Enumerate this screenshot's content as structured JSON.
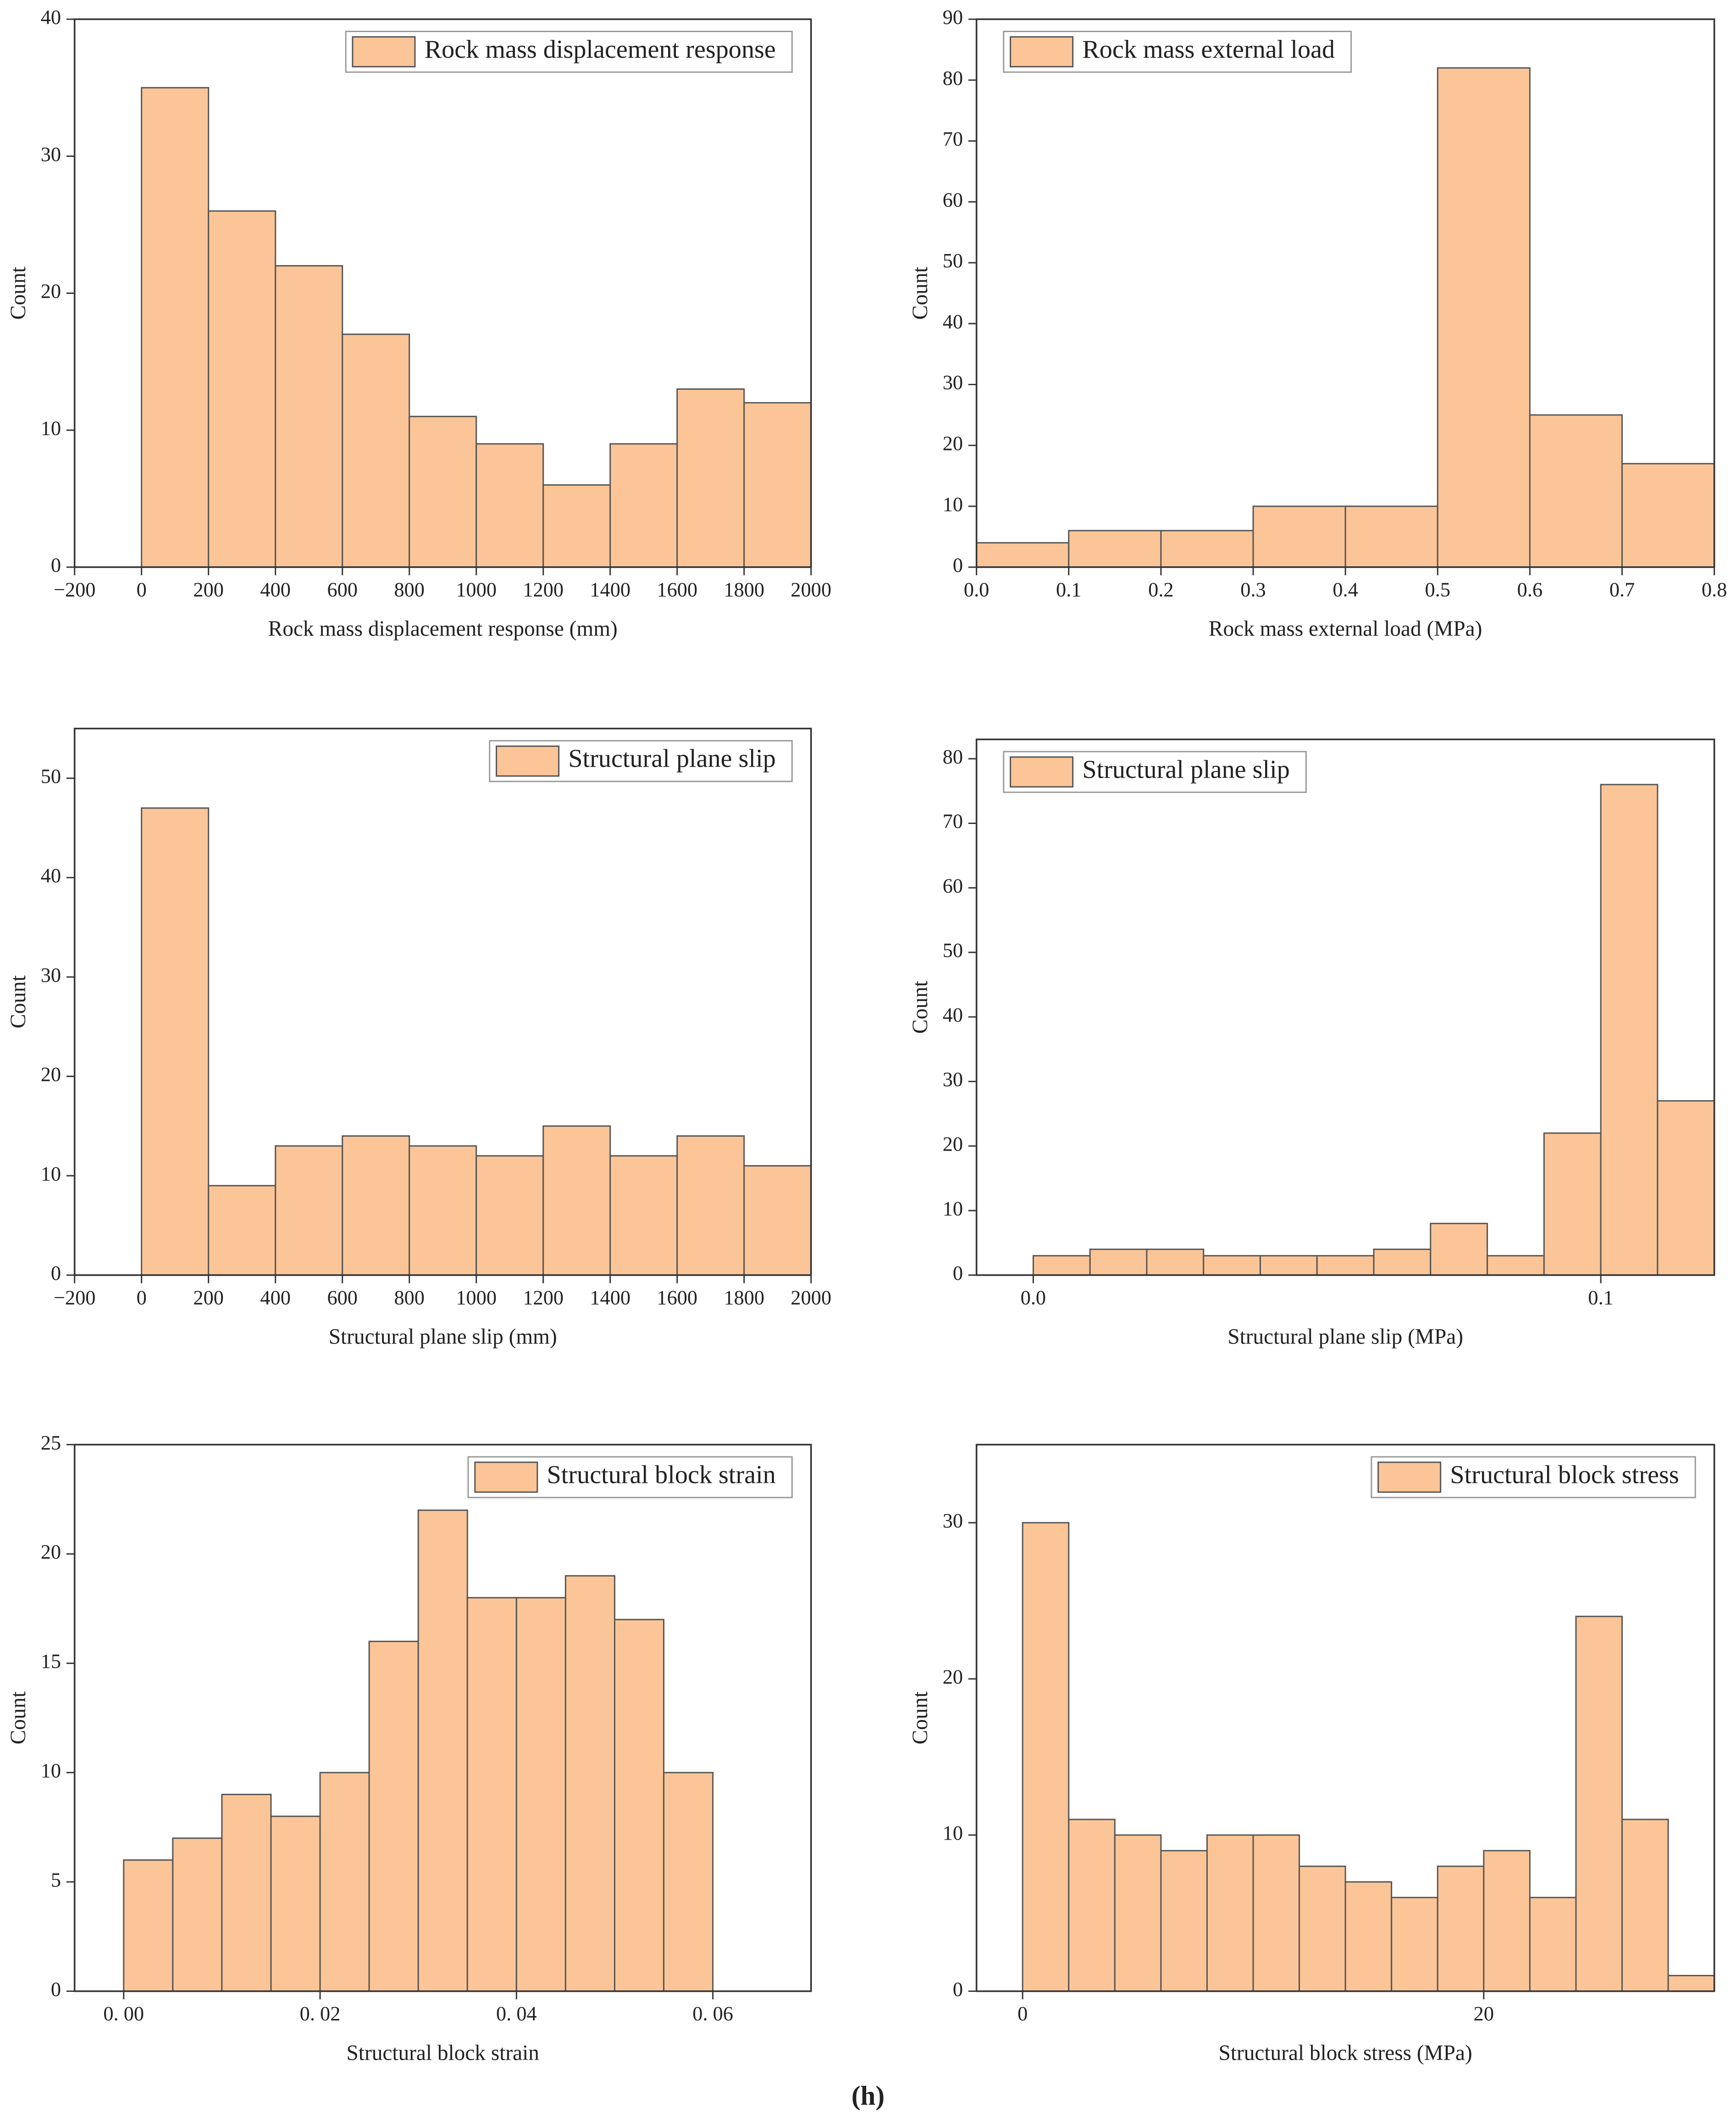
{
  "chart_data": [
    {
      "type": "histogram",
      "bins": [
        0,
        200,
        400,
        600,
        800,
        1000,
        1200,
        1400,
        1600,
        1800,
        2000
      ],
      "series": [
        {
          "name": "Rock mass displacement response",
          "color": "#fbc597",
          "values": [
            35,
            26,
            22,
            17,
            11,
            9,
            6,
            9,
            13,
            12
          ]
        }
      ],
      "xlim": [
        -200,
        2000
      ],
      "xticks": [
        {
          "value": -200,
          "label": "−200"
        },
        0,
        200,
        400,
        600,
        800,
        1000,
        1200,
        1400,
        1600,
        1800,
        2000
      ],
      "ylim": [
        0,
        40
      ],
      "yticks": [
        0,
        10,
        20,
        30,
        40
      ],
      "x_label": "Rock mass displacement response (mm)",
      "y_label": "Count",
      "legend": "upper right"
    },
    {
      "type": "histogram",
      "bins": [
        0,
        0.1,
        0.2,
        0.3,
        0.4,
        0.5,
        0.6,
        0.7,
        0.8
      ],
      "series": [
        {
          "name": "Rock mass external load",
          "color": "#fbc597",
          "values": [
            4,
            6,
            6,
            10,
            10,
            82,
            25,
            17
          ]
        }
      ],
      "xlim": [
        0,
        0.8
      ],
      "xticks": [
        {
          "value": 0,
          "label": "0.0"
        },
        0.1,
        0.2,
        0.3,
        0.4,
        0.5,
        0.6,
        0.7,
        0.8
      ],
      "ylim": [
        0,
        90
      ],
      "yticks": [
        0,
        10,
        20,
        30,
        40,
        50,
        60,
        70,
        80,
        90
      ],
      "x_label": "Rock mass external load (MPa)",
      "y_label": "Count",
      "legend": "upper left"
    },
    {
      "type": "histogram",
      "bins": [
        0,
        200,
        400,
        600,
        800,
        1000,
        1200,
        1400,
        1600,
        1800,
        2000
      ],
      "series": [
        {
          "name": "Structural plane slip",
          "color": "#fbc597",
          "values": [
            47,
            9,
            13,
            14,
            13,
            12,
            15,
            12,
            14,
            11
          ]
        }
      ],
      "xlim": [
        -200,
        2000
      ],
      "xticks": [
        {
          "value": -200,
          "label": "−200"
        },
        0,
        200,
        400,
        600,
        800,
        1000,
        1200,
        1400,
        1600,
        1800,
        2000
      ],
      "ylim": [
        0,
        55
      ],
      "yticks": [
        0,
        10,
        20,
        30,
        40,
        50
      ],
      "x_label": "Structural plane slip (mm)",
      "y_label": "Count",
      "legend": "upper right"
    },
    {
      "type": "histogram",
      "bins": [
        0,
        0.01,
        0.02,
        0.03,
        0.04,
        0.05,
        0.06,
        0.07,
        0.08,
        0.09,
        0.1,
        0.11,
        0.12
      ],
      "series": [
        {
          "name": "Structural plane slip",
          "color": "#fbc597",
          "values": [
            3,
            4,
            4,
            3,
            3,
            3,
            4,
            8,
            3,
            22,
            76,
            27
          ]
        }
      ],
      "xlim": [
        -0.01,
        0.12
      ],
      "xticks": [
        {
          "value": 0,
          "label": "0.0"
        },
        0.1
      ],
      "ylim": [
        0,
        83
      ],
      "yticks": [
        0,
        10,
        20,
        30,
        40,
        50,
        60,
        70,
        80
      ],
      "x_label": "Structural plane slip (MPa)",
      "y_label": "Count",
      "legend": "upper left"
    },
    {
      "type": "histogram",
      "bins": [
        0,
        0.005,
        0.01,
        0.015,
        0.02,
        0.025,
        0.03,
        0.035,
        0.04,
        0.045,
        0.05,
        0.055,
        0.06
      ],
      "series": [
        {
          "name": "Structural block strain",
          "color": "#fbc597",
          "values": [
            6,
            7,
            9,
            8,
            10,
            16,
            22,
            18,
            18,
            19,
            17,
            10
          ]
        }
      ],
      "xlim": [
        -0.005,
        0.07
      ],
      "xticks": [
        {
          "value": 0,
          "label": "0. 00"
        },
        {
          "value": 0.02,
          "label": "0. 02"
        },
        {
          "value": 0.04,
          "label": "0. 04"
        },
        {
          "value": 0.06,
          "label": "0. 06"
        }
      ],
      "ylim": [
        0,
        25
      ],
      "yticks": [
        0,
        5,
        10,
        15,
        20,
        25
      ],
      "x_label": "Structural block strain",
      "y_label": "Count",
      "legend": "upper right"
    },
    {
      "type": "histogram",
      "bins": [
        0,
        2,
        4,
        6,
        8,
        10,
        12,
        14,
        16,
        18,
        20,
        22,
        24,
        26,
        28,
        30
      ],
      "series": [
        {
          "name": "Structural block stress",
          "color": "#fbc597",
          "values": [
            30,
            11,
            10,
            9,
            10,
            10,
            8,
            7,
            6,
            8,
            9,
            6,
            24,
            11,
            1
          ]
        }
      ],
      "xlim": [
        -2,
        30
      ],
      "xticks": [
        0,
        20
      ],
      "ylim": [
        0,
        35
      ],
      "yticks": [
        0,
        10,
        20,
        30
      ],
      "x_label": "Structural block stress (MPa)",
      "y_label": "Count",
      "legend": "upper right"
    }
  ],
  "caption": "(h)"
}
